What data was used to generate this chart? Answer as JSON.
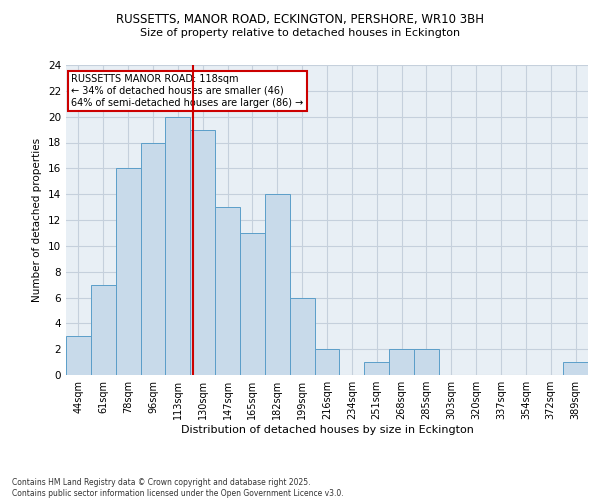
{
  "title1": "RUSSETTS, MANOR ROAD, ECKINGTON, PERSHORE, WR10 3BH",
  "title2": "Size of property relative to detached houses in Eckington",
  "xlabel": "Distribution of detached houses by size in Eckington",
  "ylabel": "Number of detached properties",
  "bar_labels": [
    "44sqm",
    "61sqm",
    "78sqm",
    "96sqm",
    "113sqm",
    "130sqm",
    "147sqm",
    "165sqm",
    "182sqm",
    "199sqm",
    "216sqm",
    "234sqm",
    "251sqm",
    "268sqm",
    "285sqm",
    "303sqm",
    "320sqm",
    "337sqm",
    "354sqm",
    "372sqm",
    "389sqm"
  ],
  "bar_values": [
    3,
    7,
    16,
    18,
    20,
    19,
    13,
    11,
    14,
    6,
    2,
    0,
    1,
    2,
    2,
    0,
    0,
    0,
    0,
    0,
    1
  ],
  "bar_color": "#c8daea",
  "bar_edge_color": "#5b9ec9",
  "bar_edge_width": 0.7,
  "grid_color": "#c5d0dc",
  "bg_color": "#e8eff5",
  "red_line_x": 4.62,
  "red_line_color": "#cc0000",
  "annotation_text": "RUSSETTS MANOR ROAD: 118sqm\n← 34% of detached houses are smaller (46)\n64% of semi-detached houses are larger (86) →",
  "annotation_box_color": "#ffffff",
  "annotation_border_color": "#cc0000",
  "footer_text": "Contains HM Land Registry data © Crown copyright and database right 2025.\nContains public sector information licensed under the Open Government Licence v3.0.",
  "ylim": [
    0,
    24
  ],
  "yticks": [
    0,
    2,
    4,
    6,
    8,
    10,
    12,
    14,
    16,
    18,
    20,
    22,
    24
  ],
  "fig_width": 6.0,
  "fig_height": 5.0,
  "dpi": 100
}
